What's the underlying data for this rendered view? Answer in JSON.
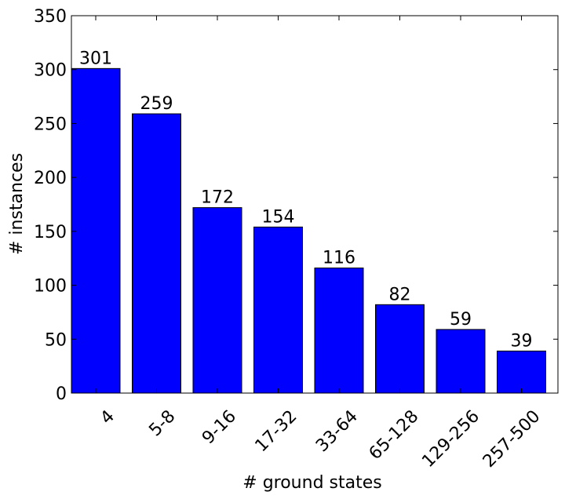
{
  "chart_data": {
    "type": "bar",
    "x_label": "# ground states",
    "y_label": "# instances",
    "categories": [
      "4",
      "5-8",
      "9-16",
      "17-32",
      "33-64",
      "65-128",
      "129-256",
      "257-500"
    ],
    "values": [
      301,
      259,
      172,
      154,
      116,
      82,
      59,
      39
    ],
    "color": "#0000ff",
    "ylim": [
      0,
      350
    ],
    "yticks": [
      0,
      50,
      100,
      150,
      200,
      250,
      300,
      350
    ],
    "grid": false
  }
}
